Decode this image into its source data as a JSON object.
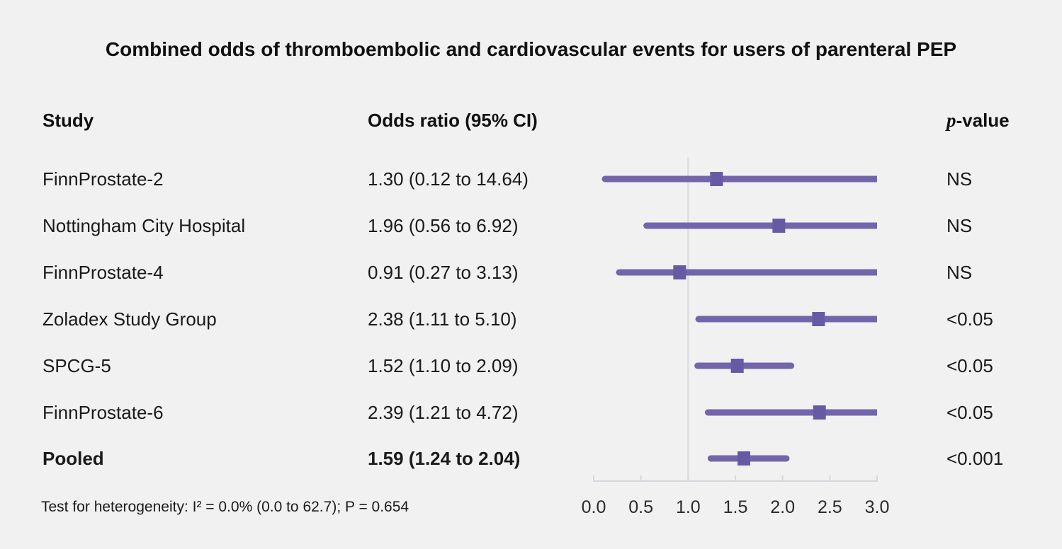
{
  "header": {
    "study": "Study",
    "odds_ratio": "Odds ratio (95% CI)",
    "p_value_italic": "p",
    "p_value_rest": "-value"
  },
  "footnote": "Test for heterogeneity: I² = 0.0% (0.0 to 62.7); P = 0.654",
  "chart_data": {
    "type": "forest",
    "title": "Combined odds of thromboembolic and cardiovascular events for users of parenteral PEP",
    "x_axis": {
      "range": [
        0.0,
        3.0
      ],
      "tick_values": [
        0.0,
        0.5,
        1.0,
        1.5,
        2.0,
        2.5,
        3.0
      ],
      "tick_labels": [
        "0.0",
        "0.5",
        "1.0",
        "1.5",
        "2.0",
        "2.5",
        "3.0"
      ],
      "reference_line": 1.0
    },
    "studies": [
      {
        "label": "FinnProstate-2",
        "or": 1.3,
        "ci_low": 0.12,
        "ci_high": 14.64,
        "or_text": "1.30 (0.12 to 14.64)",
        "p_value": "NS",
        "pooled": false
      },
      {
        "label": "Nottingham City Hospital",
        "or": 1.96,
        "ci_low": 0.56,
        "ci_high": 6.92,
        "or_text": "1.96 (0.56 to 6.92)",
        "p_value": "NS",
        "pooled": false
      },
      {
        "label": "FinnProstate-4",
        "or": 0.91,
        "ci_low": 0.27,
        "ci_high": 3.13,
        "or_text": "0.91 (0.27 to 3.13)",
        "p_value": "NS",
        "pooled": false
      },
      {
        "label": "Zoladex Study Group",
        "or": 2.38,
        "ci_low": 1.11,
        "ci_high": 5.1,
        "or_text": "2.38 (1.11 to 5.10)",
        "p_value": "<0.05",
        "pooled": false
      },
      {
        "label": "SPCG-5",
        "or": 1.52,
        "ci_low": 1.1,
        "ci_high": 2.09,
        "or_text": "1.52 (1.10 to 2.09)",
        "p_value": "<0.05",
        "pooled": false
      },
      {
        "label": "FinnProstate-6",
        "or": 2.39,
        "ci_low": 1.21,
        "ci_high": 4.72,
        "or_text": "2.39 (1.21 to 4.72)",
        "p_value": "<0.05",
        "pooled": false
      },
      {
        "label": "Pooled",
        "or": 1.59,
        "ci_low": 1.24,
        "ci_high": 2.04,
        "or_text": "1.59 (1.24 to 2.04)",
        "p_value": "<0.001",
        "pooled": true
      }
    ],
    "colors": {
      "ci_line": "#7365ab",
      "marker": "#675aa5",
      "axis": "#d5d9de",
      "reference_line": "#dcdfe3",
      "background": "#f2f1f1",
      "text": "#1a1a1a",
      "tick_text": "#2a2a2a"
    }
  }
}
